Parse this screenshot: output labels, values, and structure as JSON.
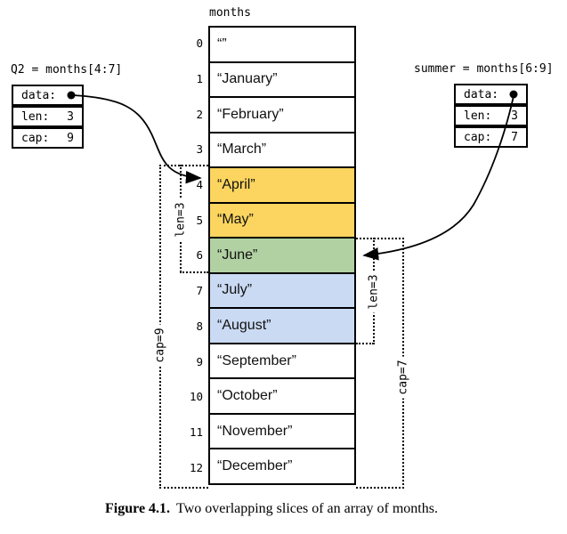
{
  "array": {
    "title": "months",
    "cells": [
      {
        "index": "0",
        "value": "“”",
        "bg": "#FFFFFF"
      },
      {
        "index": "1",
        "value": "“January”",
        "bg": "#FFFFFF"
      },
      {
        "index": "2",
        "value": "“February”",
        "bg": "#FFFFFF"
      },
      {
        "index": "3",
        "value": "“March”",
        "bg": "#FFFFFF"
      },
      {
        "index": "4",
        "value": "“April”",
        "bg": "#FBD55F"
      },
      {
        "index": "5",
        "value": "“May”",
        "bg": "#FBD55F"
      },
      {
        "index": "6",
        "value": "“June”",
        "bg": "#B1D1A2"
      },
      {
        "index": "7",
        "value": "“July”",
        "bg": "#CADAF3"
      },
      {
        "index": "8",
        "value": "“August”",
        "bg": "#CADAF3"
      },
      {
        "index": "9",
        "value": "“September”",
        "bg": "#FFFFFF"
      },
      {
        "index": "10",
        "value": "“October”",
        "bg": "#FFFFFF"
      },
      {
        "index": "11",
        "value": "“November”",
        "bg": "#FFFFFF"
      },
      {
        "index": "12",
        "value": "“December”",
        "bg": "#FFFFFF"
      }
    ]
  },
  "q2": {
    "title": "Q2 = months[4:7]",
    "rows": [
      {
        "label": "data:",
        "value": ""
      },
      {
        "label": "len:",
        "value": "3"
      },
      {
        "label": "cap:",
        "value": "9"
      }
    ],
    "pointer_icon": "●"
  },
  "summer": {
    "title": "summer = months[6:9]",
    "rows": [
      {
        "label": "data:",
        "value": ""
      },
      {
        "label": "len:",
        "value": "3"
      },
      {
        "label": "cap:",
        "value": "7"
      }
    ],
    "pointer_icon": "●"
  },
  "brackets": {
    "q2_len": "len=3",
    "q2_cap": "cap=9",
    "summer_len": "len=3",
    "summer_cap": "cap=7"
  },
  "caption": {
    "label": "Figure 4.1.",
    "text": "Two overlapping slices of an array of months."
  },
  "colors": {
    "april_may": "#FBD55F",
    "june": "#B1D1A2",
    "july_august": "#CADAF3",
    "line": "#000000"
  }
}
